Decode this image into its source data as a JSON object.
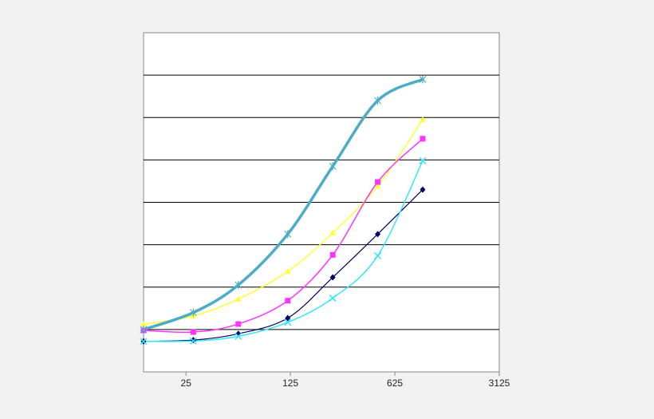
{
  "chart_data": {
    "type": "line",
    "title": "",
    "xlabel": "",
    "ylabel": "",
    "x_scale": "log",
    "xlim": [
      13,
      3125
    ],
    "ylim": [
      -1,
      7
    ],
    "x_ticks": [
      25,
      125,
      625,
      3125
    ],
    "x_tick_labels": [
      "25",
      "125",
      "625",
      "3125"
    ],
    "y_gridlines": [
      0,
      1,
      2,
      3,
      4,
      5,
      6
    ],
    "grid": true,
    "legend": "none",
    "series": [
      {
        "color": "#4bacc6",
        "marker": "asterisk",
        "width": 3.5,
        "x": [
          13,
          28,
          56,
          120,
          240,
          480,
          960
        ],
        "y": [
          0,
          0.4,
          1.05,
          2.25,
          3.85,
          5.4,
          5.9
        ]
      },
      {
        "color": "#ffff33",
        "marker": "triangle",
        "width": 1.5,
        "x": [
          13,
          28,
          56,
          120,
          240,
          480,
          960
        ],
        "y": [
          0.12,
          0.32,
          0.72,
          1.37,
          2.28,
          3.38,
          4.95
        ]
      },
      {
        "color": "#ff33ff",
        "marker": "square",
        "width": 1.5,
        "x": [
          13,
          28,
          56,
          120,
          240,
          480,
          960
        ],
        "y": [
          -0.02,
          -0.06,
          0.13,
          0.68,
          1.76,
          3.48,
          4.5
        ]
      },
      {
        "color": "#000066",
        "marker": "diamond",
        "width": 1.2,
        "x": [
          13,
          28,
          56,
          120,
          240,
          480,
          960
        ],
        "y": [
          -0.28,
          -0.25,
          -0.1,
          0.27,
          1.23,
          2.25,
          3.3
        ]
      },
      {
        "color": "#33e6ff",
        "marker": "x",
        "width": 1.5,
        "x": [
          13,
          28,
          56,
          120,
          240,
          480,
          960
        ],
        "y": [
          -0.28,
          -0.27,
          -0.16,
          0.17,
          0.74,
          1.74,
          3.98
        ]
      }
    ]
  }
}
